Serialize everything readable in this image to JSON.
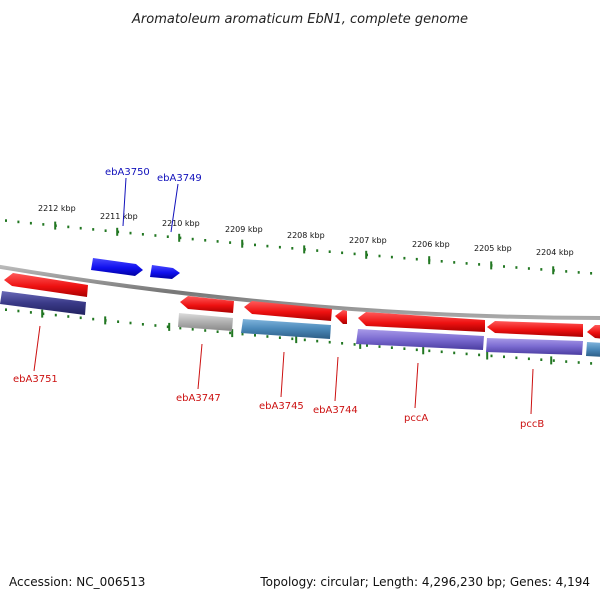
{
  "title": "Aromatoleum aromaticum EbN1, complete genome",
  "footer": {
    "accession": "Accession: NC_006513",
    "topology": "Topology: circular; Length: 4,296,230 bp; Genes: 4,194"
  },
  "colors": {
    "forward_gene": "#1010ee",
    "reverse_gene": "#ee1111",
    "label_forward": "#1111bb",
    "label_reverse": "#cc1111",
    "tick": "#227722",
    "backbone": "#888888",
    "cds_dark": "#3a3a88",
    "cds_grey": "#aaaaaa",
    "cds_steel": "#4a88b8",
    "cds_violet": "#7a6ad0"
  },
  "tick_labels": [
    "2212 kbp",
    "2211 kbp",
    "2210 kbp",
    "2209 kbp",
    "2208 kbp",
    "2207 kbp",
    "2206 kbp",
    "2205 kbp",
    "2204 kbp"
  ],
  "genes_forward": [
    {
      "name": "ebA3750"
    },
    {
      "name": "ebA3749"
    }
  ],
  "genes_reverse": [
    {
      "name": "ebA3751"
    },
    {
      "name": "ebA3747"
    },
    {
      "name": "ebA3745"
    },
    {
      "name": "ebA3744"
    },
    {
      "name": "pccA"
    },
    {
      "name": "pccB"
    }
  ]
}
